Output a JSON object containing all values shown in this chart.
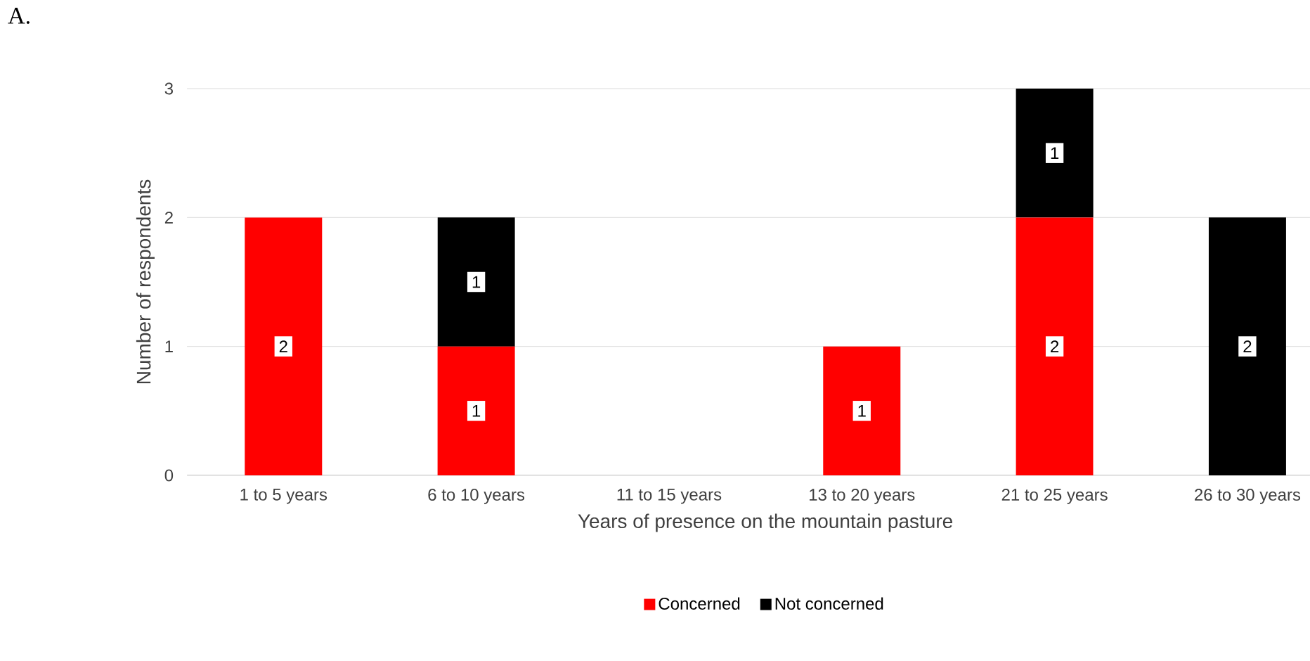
{
  "chart_data": {
    "type": "bar",
    "title": "A.",
    "stacked": true,
    "xlabel": "Years of presence on the mountain pasture",
    "ylabel": "Number of respondents",
    "categories": [
      "1 to 5 years",
      "6 to 10 years",
      "11 to 15 years",
      "13 to 20 years",
      "21 to 25 years",
      "26 to 30 years"
    ],
    "series": [
      {
        "name": "Concerned",
        "color": "#ff0000",
        "values": [
          2,
          1,
          0,
          1,
          2,
          0
        ],
        "value_labels": [
          "2",
          "1",
          null,
          "1",
          "2",
          null
        ]
      },
      {
        "name": "Not concerned",
        "color": "#000000",
        "values": [
          0,
          1,
          0,
          0,
          1,
          2
        ],
        "value_labels": [
          null,
          "1",
          null,
          null,
          "1",
          "2"
        ]
      }
    ],
    "ylim": [
      0,
      3
    ],
    "yticks": [
      0,
      1,
      2,
      3
    ],
    "grid": "y",
    "legend": "bottom"
  }
}
